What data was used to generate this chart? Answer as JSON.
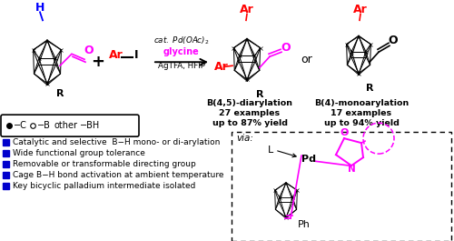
{
  "bg_color": "#ffffff",
  "bullet_points": [
    "Catalytic and selective  B−H mono- or di-arylation",
    "Wide functional group tolerance",
    "Removable or transformable directing group",
    "Cage B−H bond activation at ambient temperature",
    "Key bicyclic palladium intermediate isolated"
  ],
  "bullet_color": "#0000cc",
  "magenta": "#ff00ff",
  "red": "#ff0000",
  "blue": "#0000ff",
  "product1_label": [
    "B(4,5)-diarylation",
    "27 examples",
    "up to 87% yield"
  ],
  "product2_label": [
    "B(4)-monoarylation",
    "17 examples",
    "up to 94% yield"
  ]
}
